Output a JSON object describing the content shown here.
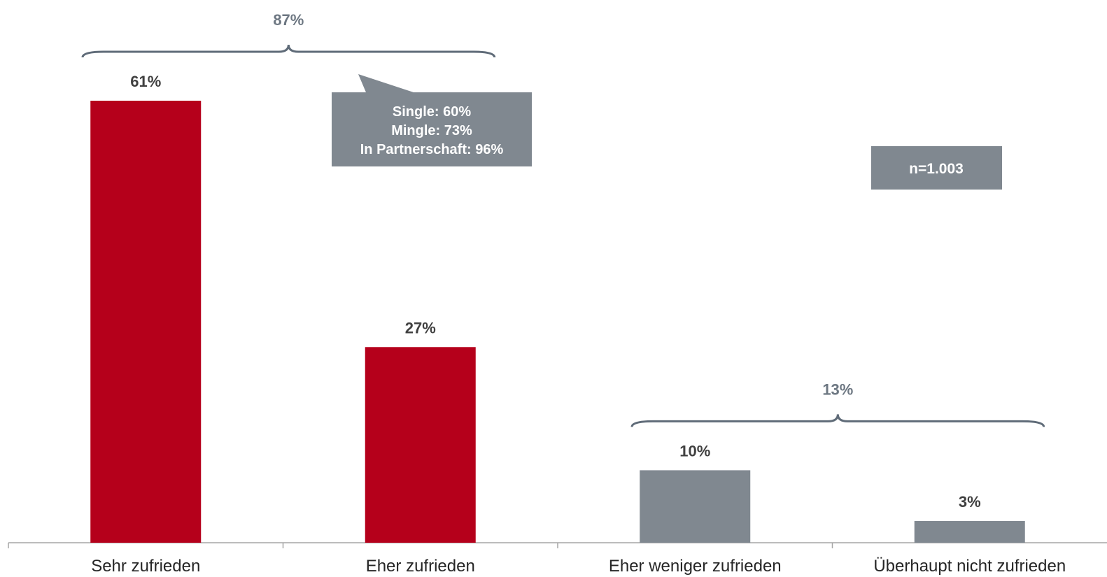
{
  "chart_data": {
    "type": "bar",
    "categories": [
      "Sehr zufrieden",
      "Eher zufrieden",
      "Eher weniger zufrieden",
      "Überhaupt nicht zufrieden"
    ],
    "values": [
      61,
      27,
      10,
      3
    ],
    "value_labels": [
      "61%",
      "27%",
      "10%",
      "3%"
    ],
    "ylim": [
      0,
      61
    ],
    "colors": [
      "#b5001b",
      "#b5001b",
      "#808890",
      "#808890"
    ],
    "groups": [
      {
        "label": "87%",
        "from": 0,
        "to": 1
      },
      {
        "label": "13%",
        "from": 2,
        "to": 3
      }
    ],
    "callout": [
      "Single: 60%",
      "Mingle: 73%",
      "In Partnerschaft: 96%"
    ],
    "sample_size": "n=1.003",
    "grid": false,
    "legend": "none"
  },
  "colors": {
    "positive": "#b5001b",
    "negative": "#808890",
    "box": "#808890",
    "brace": "#5f6b78",
    "axis": "#a6a6a6"
  }
}
